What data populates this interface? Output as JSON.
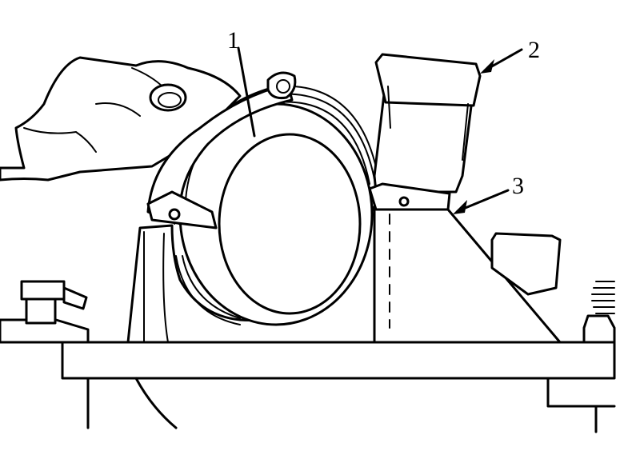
{
  "callouts": {
    "one": "1",
    "two": "2",
    "three": "3"
  },
  "colors": {
    "line": "#000000",
    "background": "#ffffff"
  }
}
